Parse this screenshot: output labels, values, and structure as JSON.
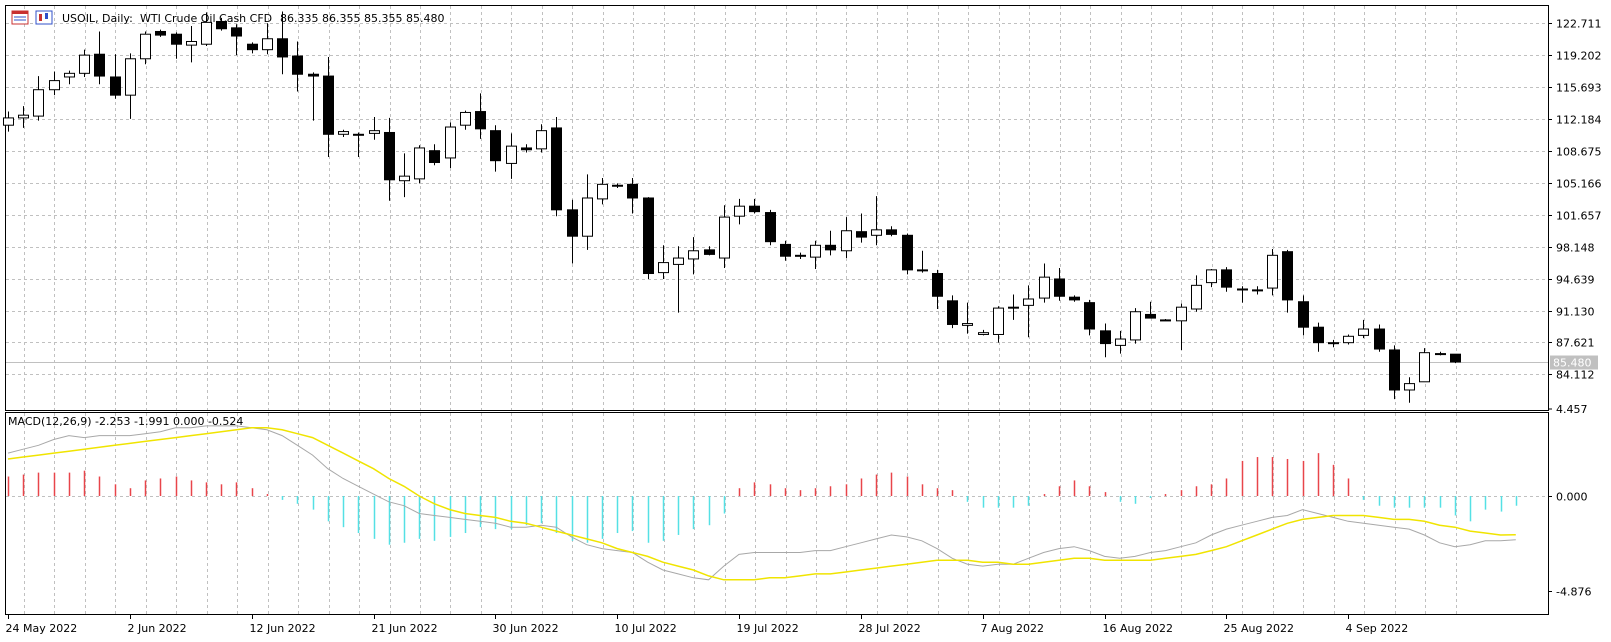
{
  "window": {
    "symbol": "USOIL, Daily:",
    "description": "WTI Crude Oil Cash CFD",
    "ohlc": "86.335 86.355 85.355 85.480",
    "icons": [
      "calendar-table-icon",
      "chart-candles-icon"
    ]
  },
  "colors": {
    "background": "#ffffff",
    "grid": "#c0c0c0",
    "bull_body": "#ffffff",
    "bear_body": "#000000",
    "macd_pos": "#e8454a",
    "macd_neg": "#55e0e5",
    "signal": "#f0e400",
    "macd_line": "#a8a8a8",
    "price_marker_bg": "#c0c0c0"
  },
  "chart_data": [
    {
      "type": "candlestick",
      "title": "USOIL, Daily: WTI Crude Oil Cash CFD",
      "current_price_label": "85.480",
      "current_price": 85.48,
      "y_ticks": [
        "122.711",
        "119.202",
        "115.693",
        "112.184",
        "108.675",
        "105.166",
        "101.657",
        "98.148",
        "94.639",
        "91.130",
        "87.621",
        "84.112"
      ],
      "ylim": [
        80.2,
        124.6
      ],
      "x_ticks": [
        "24 May 2022",
        "2 Jun 2022",
        "12 Jun 2022",
        "21 Jun 2022",
        "30 Jun 2022",
        "10 Jul 2022",
        "19 Jul 2022",
        "28 Jul 2022",
        "7 Aug 2022",
        "16 Aug 2022",
        "25 Aug 2022",
        "4 Sep 2022"
      ],
      "x_tick_bar_index": [
        0,
        8,
        16,
        24,
        32,
        40,
        48,
        56,
        64,
        72,
        80,
        88
      ],
      "candles": [
        {
          "o": 111.5,
          "h": 113.0,
          "l": 110.8,
          "c": 112.3
        },
        {
          "o": 112.3,
          "h": 113.6,
          "l": 111.2,
          "c": 112.6
        },
        {
          "o": 112.5,
          "h": 116.9,
          "l": 112.0,
          "c": 115.4
        },
        {
          "o": 115.4,
          "h": 117.4,
          "l": 114.8,
          "c": 116.4
        },
        {
          "o": 116.8,
          "h": 117.5,
          "l": 116.0,
          "c": 117.2
        },
        {
          "o": 117.2,
          "h": 119.8,
          "l": 116.8,
          "c": 119.2
        },
        {
          "o": 119.3,
          "h": 121.8,
          "l": 116.0,
          "c": 116.9
        },
        {
          "o": 116.8,
          "h": 119.3,
          "l": 114.4,
          "c": 114.8
        },
        {
          "o": 114.8,
          "h": 119.4,
          "l": 112.2,
          "c": 118.8
        },
        {
          "o": 118.8,
          "h": 121.8,
          "l": 118.2,
          "c": 121.5
        },
        {
          "o": 121.8,
          "h": 122.0,
          "l": 121.2,
          "c": 121.4
        },
        {
          "o": 121.5,
          "h": 121.7,
          "l": 118.8,
          "c": 120.4
        },
        {
          "o": 120.3,
          "h": 122.4,
          "l": 118.4,
          "c": 120.7
        },
        {
          "o": 120.4,
          "h": 123.9,
          "l": 120.2,
          "c": 122.8
        },
        {
          "o": 122.9,
          "h": 123.3,
          "l": 121.9,
          "c": 122.1
        },
        {
          "o": 122.2,
          "h": 122.6,
          "l": 119.2,
          "c": 121.3
        },
        {
          "o": 120.4,
          "h": 120.6,
          "l": 119.4,
          "c": 119.8
        },
        {
          "o": 119.8,
          "h": 122.7,
          "l": 119.3,
          "c": 121.0
        },
        {
          "o": 121.0,
          "h": 124.0,
          "l": 117.1,
          "c": 119.0
        },
        {
          "o": 119.1,
          "h": 120.7,
          "l": 115.2,
          "c": 117.1
        },
        {
          "o": 117.1,
          "h": 117.3,
          "l": 112.0,
          "c": 116.9
        },
        {
          "o": 116.9,
          "h": 119.0,
          "l": 108.0,
          "c": 110.5
        },
        {
          "o": 110.5,
          "h": 111.0,
          "l": 110.2,
          "c": 110.8
        },
        {
          "o": 110.5,
          "h": 110.7,
          "l": 108.0,
          "c": 110.4
        },
        {
          "o": 110.6,
          "h": 112.4,
          "l": 109.9,
          "c": 110.9
        },
        {
          "o": 110.7,
          "h": 112.3,
          "l": 103.2,
          "c": 105.5
        },
        {
          "o": 105.4,
          "h": 108.4,
          "l": 103.6,
          "c": 105.9
        },
        {
          "o": 105.6,
          "h": 109.3,
          "l": 105.1,
          "c": 109.0
        },
        {
          "o": 108.7,
          "h": 109.4,
          "l": 107.1,
          "c": 107.4
        },
        {
          "o": 107.9,
          "h": 111.8,
          "l": 106.8,
          "c": 111.3
        },
        {
          "o": 111.5,
          "h": 113.1,
          "l": 111.0,
          "c": 112.9
        },
        {
          "o": 113.0,
          "h": 115.0,
          "l": 110.0,
          "c": 111.1
        },
        {
          "o": 110.9,
          "h": 111.5,
          "l": 106.4,
          "c": 107.6
        },
        {
          "o": 107.3,
          "h": 110.6,
          "l": 105.6,
          "c": 109.2
        },
        {
          "o": 109.0,
          "h": 109.4,
          "l": 108.5,
          "c": 108.8
        },
        {
          "o": 108.9,
          "h": 111.6,
          "l": 108.5,
          "c": 110.9
        },
        {
          "o": 111.2,
          "h": 112.4,
          "l": 101.5,
          "c": 102.2
        },
        {
          "o": 102.2,
          "h": 103.3,
          "l": 96.3,
          "c": 99.3
        },
        {
          "o": 99.3,
          "h": 106.1,
          "l": 97.8,
          "c": 103.5
        },
        {
          "o": 103.4,
          "h": 105.7,
          "l": 102.8,
          "c": 105.0
        },
        {
          "o": 104.9,
          "h": 105.1,
          "l": 104.6,
          "c": 104.8
        },
        {
          "o": 105.0,
          "h": 105.7,
          "l": 101.8,
          "c": 103.5
        },
        {
          "o": 103.5,
          "h": 103.6,
          "l": 94.6,
          "c": 95.2
        },
        {
          "o": 95.3,
          "h": 98.3,
          "l": 94.6,
          "c": 96.4
        },
        {
          "o": 96.2,
          "h": 98.2,
          "l": 90.9,
          "c": 96.9
        },
        {
          "o": 96.8,
          "h": 99.2,
          "l": 95.1,
          "c": 97.7
        },
        {
          "o": 97.8,
          "h": 98.2,
          "l": 97.2,
          "c": 97.3
        },
        {
          "o": 96.9,
          "h": 102.7,
          "l": 95.8,
          "c": 101.4
        },
        {
          "o": 101.5,
          "h": 103.4,
          "l": 100.6,
          "c": 102.6
        },
        {
          "o": 102.6,
          "h": 103.4,
          "l": 101.8,
          "c": 102.0
        },
        {
          "o": 101.9,
          "h": 102.2,
          "l": 98.3,
          "c": 98.7
        },
        {
          "o": 98.4,
          "h": 98.8,
          "l": 96.6,
          "c": 97.1
        },
        {
          "o": 97.1,
          "h": 97.5,
          "l": 96.8,
          "c": 97.2
        },
        {
          "o": 97.0,
          "h": 98.8,
          "l": 95.7,
          "c": 98.3
        },
        {
          "o": 98.3,
          "h": 99.9,
          "l": 97.2,
          "c": 97.8
        },
        {
          "o": 97.7,
          "h": 101.4,
          "l": 96.9,
          "c": 99.9
        },
        {
          "o": 99.8,
          "h": 101.8,
          "l": 98.6,
          "c": 99.2
        },
        {
          "o": 99.4,
          "h": 103.7,
          "l": 98.3,
          "c": 100.0
        },
        {
          "o": 100.0,
          "h": 100.4,
          "l": 99.3,
          "c": 99.5
        },
        {
          "o": 99.4,
          "h": 99.6,
          "l": 95.1,
          "c": 95.6
        },
        {
          "o": 95.5,
          "h": 97.7,
          "l": 95.3,
          "c": 95.6
        },
        {
          "o": 95.2,
          "h": 95.6,
          "l": 91.3,
          "c": 92.7
        },
        {
          "o": 92.2,
          "h": 92.8,
          "l": 89.2,
          "c": 89.6
        },
        {
          "o": 89.5,
          "h": 92.0,
          "l": 88.6,
          "c": 89.7
        },
        {
          "o": 88.5,
          "h": 89.0,
          "l": 88.4,
          "c": 88.7
        },
        {
          "o": 88.5,
          "h": 91.6,
          "l": 87.6,
          "c": 91.4
        },
        {
          "o": 91.4,
          "h": 92.9,
          "l": 90.1,
          "c": 91.5
        },
        {
          "o": 91.7,
          "h": 93.9,
          "l": 88.2,
          "c": 92.4
        },
        {
          "o": 92.5,
          "h": 96.3,
          "l": 92.0,
          "c": 94.8
        },
        {
          "o": 94.6,
          "h": 95.8,
          "l": 92.2,
          "c": 92.7
        },
        {
          "o": 92.6,
          "h": 92.8,
          "l": 92.1,
          "c": 92.3
        },
        {
          "o": 92.0,
          "h": 92.3,
          "l": 88.4,
          "c": 89.1
        },
        {
          "o": 88.9,
          "h": 89.7,
          "l": 86.0,
          "c": 87.5
        },
        {
          "o": 87.3,
          "h": 88.9,
          "l": 86.4,
          "c": 88.0
        },
        {
          "o": 87.9,
          "h": 91.4,
          "l": 87.5,
          "c": 91.0
        },
        {
          "o": 90.7,
          "h": 92.1,
          "l": 90.5,
          "c": 90.3
        },
        {
          "o": 90.1,
          "h": 90.2,
          "l": 90.0,
          "c": 90.0
        },
        {
          "o": 90.0,
          "h": 91.9,
          "l": 86.8,
          "c": 91.5
        },
        {
          "o": 91.3,
          "h": 95.0,
          "l": 91.0,
          "c": 93.9
        },
        {
          "o": 94.2,
          "h": 95.7,
          "l": 93.7,
          "c": 95.6
        },
        {
          "o": 95.6,
          "h": 95.9,
          "l": 93.2,
          "c": 93.7
        },
        {
          "o": 93.5,
          "h": 93.8,
          "l": 92.0,
          "c": 93.4
        },
        {
          "o": 93.4,
          "h": 93.8,
          "l": 92.9,
          "c": 93.4
        },
        {
          "o": 93.6,
          "h": 97.9,
          "l": 92.8,
          "c": 97.2
        },
        {
          "o": 97.6,
          "h": 97.8,
          "l": 90.9,
          "c": 92.3
        },
        {
          "o": 92.1,
          "h": 92.8,
          "l": 88.4,
          "c": 89.3
        },
        {
          "o": 89.3,
          "h": 89.8,
          "l": 86.6,
          "c": 87.6
        },
        {
          "o": 87.6,
          "h": 87.9,
          "l": 87.1,
          "c": 87.5
        },
        {
          "o": 87.6,
          "h": 88.5,
          "l": 87.4,
          "c": 88.3
        },
        {
          "o": 88.4,
          "h": 90.1,
          "l": 88.1,
          "c": 89.1
        },
        {
          "o": 89.1,
          "h": 89.6,
          "l": 86.6,
          "c": 86.9
        },
        {
          "o": 86.8,
          "h": 87.3,
          "l": 81.4,
          "c": 82.4
        },
        {
          "o": 82.4,
          "h": 83.8,
          "l": 81.0,
          "c": 83.1
        },
        {
          "o": 83.3,
          "h": 87.0,
          "l": 83.3,
          "c": 86.5
        },
        {
          "o": 86.4,
          "h": 86.6,
          "l": 86.2,
          "c": 86.3
        },
        {
          "o": 86.335,
          "h": 86.355,
          "l": 85.355,
          "c": 85.48
        }
      ]
    },
    {
      "type": "bar+line",
      "title": "MACD(12,26,9) -2.253 -1.991 0.000 -0.524",
      "y_ticks": [
        "4.457",
        "0.000",
        "-4.876"
      ],
      "ylim": [
        -4.876,
        4.457
      ],
      "histogram": [
        1.0,
        1.1,
        1.2,
        1.2,
        1.2,
        1.3,
        1.0,
        0.6,
        0.4,
        0.8,
        0.9,
        1.0,
        0.8,
        0.7,
        0.6,
        0.7,
        0.4,
        0.1,
        -0.2,
        -0.4,
        -0.7,
        -1.3,
        -1.6,
        -1.9,
        -2.2,
        -2.5,
        -2.4,
        -2.2,
        -2.3,
        -2.1,
        -1.9,
        -1.6,
        -1.7,
        -1.7,
        -1.5,
        -1.4,
        -1.9,
        -2.3,
        -2.4,
        -2.2,
        -1.9,
        -1.8,
        -2.4,
        -2.3,
        -2.0,
        -1.7,
        -1.5,
        -0.9,
        0.4,
        0.7,
        0.6,
        0.4,
        0.3,
        0.4,
        0.5,
        0.6,
        0.9,
        1.1,
        1.2,
        1.0,
        0.6,
        0.4,
        0.3,
        -0.3,
        -0.6,
        -0.6,
        -0.6,
        -0.5,
        0.1,
        0.5,
        0.8,
        0.5,
        0.2,
        -0.3,
        -0.4,
        -0.1,
        0.1,
        0.3,
        0.5,
        0.6,
        0.9,
        1.8,
        2.0,
        2.0,
        1.9,
        1.8,
        2.2,
        1.6,
        0.9,
        -0.2,
        -0.5,
        -0.6,
        -0.6,
        -0.6,
        -0.6,
        -1.0,
        -1.3,
        -0.7,
        -0.8,
        -0.5
      ],
      "macd_line": [
        2.2,
        2.4,
        2.6,
        2.9,
        3.1,
        3.0,
        3.1,
        3.1,
        3.1,
        3.2,
        3.3,
        3.5,
        3.5,
        3.6,
        3.6,
        3.6,
        3.5,
        3.4,
        3.1,
        2.6,
        2.1,
        1.4,
        0.9,
        0.5,
        0.1,
        -0.3,
        -0.5,
        -0.9,
        -1.0,
        -1.1,
        -1.2,
        -1.3,
        -1.4,
        -1.6,
        -1.6,
        -1.5,
        -1.6,
        -2.1,
        -2.5,
        -2.7,
        -2.8,
        -2.9,
        -3.4,
        -3.8,
        -4.0,
        -4.2,
        -4.3,
        -3.6,
        -3.0,
        -2.9,
        -2.9,
        -2.9,
        -2.9,
        -2.8,
        -2.8,
        -2.6,
        -2.4,
        -2.2,
        -2.0,
        -2.1,
        -2.3,
        -2.7,
        -3.2,
        -3.5,
        -3.6,
        -3.5,
        -3.5,
        -3.2,
        -2.9,
        -2.7,
        -2.6,
        -2.8,
        -3.1,
        -3.2,
        -3.1,
        -2.9,
        -2.8,
        -2.6,
        -2.4,
        -2.0,
        -1.7,
        -1.5,
        -1.3,
        -1.1,
        -1.0,
        -0.7,
        -0.9,
        -1.1,
        -1.3,
        -1.4,
        -1.5,
        -1.6,
        -1.7,
        -2.0,
        -2.4,
        -2.6,
        -2.5,
        -2.3,
        -2.3,
        -2.25
      ],
      "signal_line": [
        1.9,
        2.0,
        2.1,
        2.2,
        2.3,
        2.4,
        2.5,
        2.6,
        2.7,
        2.8,
        2.9,
        3.0,
        3.1,
        3.2,
        3.3,
        3.4,
        3.5,
        3.5,
        3.4,
        3.2,
        3.0,
        2.6,
        2.2,
        1.8,
        1.4,
        0.9,
        0.5,
        0.0,
        -0.4,
        -0.7,
        -0.9,
        -1.0,
        -1.1,
        -1.3,
        -1.4,
        -1.6,
        -1.8,
        -2.0,
        -2.2,
        -2.4,
        -2.7,
        -2.9,
        -3.1,
        -3.4,
        -3.6,
        -3.8,
        -4.1,
        -4.3,
        -4.3,
        -4.3,
        -4.2,
        -4.2,
        -4.1,
        -4.0,
        -4.0,
        -3.9,
        -3.8,
        -3.7,
        -3.6,
        -3.5,
        -3.4,
        -3.3,
        -3.3,
        -3.3,
        -3.4,
        -3.4,
        -3.5,
        -3.5,
        -3.4,
        -3.3,
        -3.2,
        -3.2,
        -3.3,
        -3.3,
        -3.3,
        -3.3,
        -3.2,
        -3.1,
        -3.0,
        -2.8,
        -2.6,
        -2.3,
        -2.0,
        -1.7,
        -1.4,
        -1.2,
        -1.1,
        -1.0,
        -1.0,
        -1.0,
        -1.1,
        -1.2,
        -1.2,
        -1.3,
        -1.5,
        -1.6,
        -1.8,
        -1.9,
        -2.0,
        -1.99
      ]
    }
  ]
}
